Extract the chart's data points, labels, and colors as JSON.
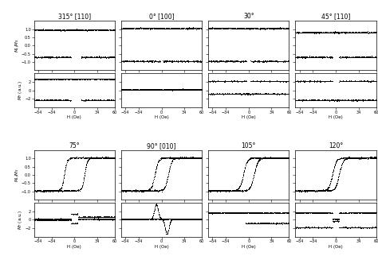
{
  "panels": [
    {
      "title": "315° [110]",
      "row": 0,
      "col": 0
    },
    {
      "title": "0° [100]",
      "row": 0,
      "col": 1
    },
    {
      "title": "30°",
      "row": 0,
      "col": 2
    },
    {
      "title": "45° [110]",
      "row": 0,
      "col": 3
    },
    {
      "title": "75°",
      "row": 1,
      "col": 0
    },
    {
      "title": "90° [010]",
      "row": 1,
      "col": 1
    },
    {
      "title": "105°",
      "row": 1,
      "col": 2
    },
    {
      "title": "120°",
      "row": 1,
      "col": 3
    }
  ],
  "background": "#ffffff"
}
